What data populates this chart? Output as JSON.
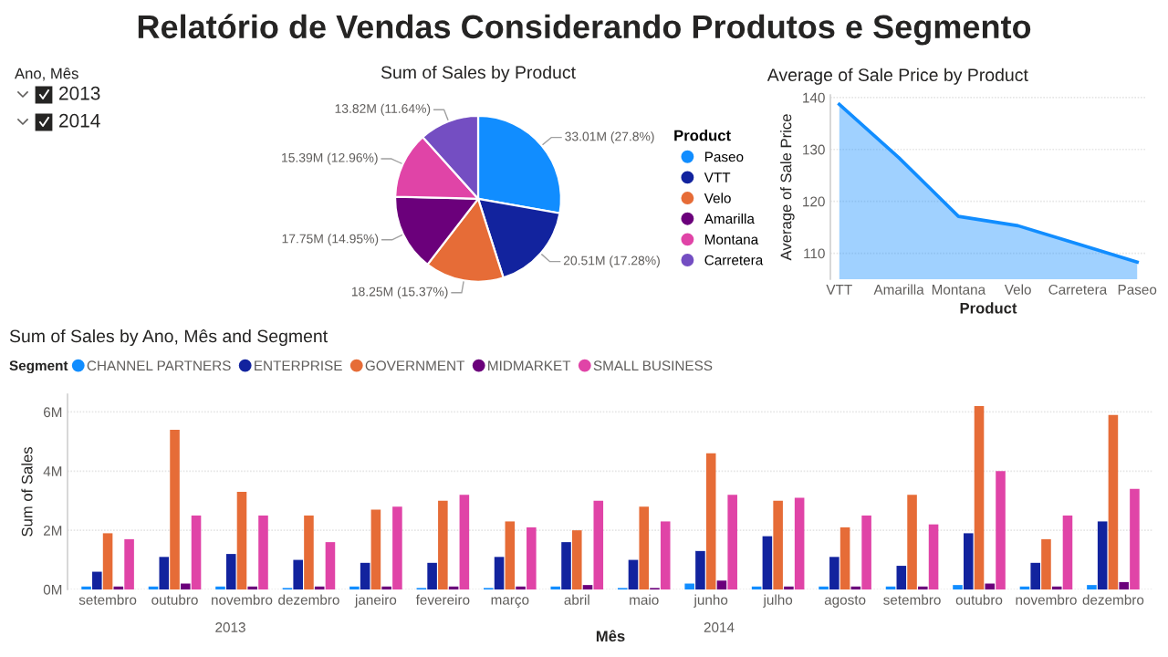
{
  "chart_data": [
    {
      "type": "other",
      "title": "Relatório de Vendas Considerando Produtos e Segmento",
      "annotations": [
        "Ano, Mês",
        "2013",
        "2014"
      ]
    },
    {
      "type": "pie",
      "title": "Sum of Sales by Product",
      "legend_title": "Product",
      "legend": "right",
      "categories": [
        "Paseo",
        "VTT",
        "Velo",
        "Amarilla",
        "Montana",
        "Carretera"
      ],
      "values": [
        27.8,
        17.28,
        15.37,
        14.95,
        12.96,
        11.64
      ],
      "colors": [
        "#118dff",
        "#12239e",
        "#e66c37",
        "#6b007b",
        "#e044a7",
        "#744ec2"
      ],
      "value_labels": [
        "33.01M (27.8%)",
        "20.51M (17.28%)",
        "18.25M (15.37%)",
        "17.75M (14.95%)",
        "15.39M (12.96%)",
        "13.82M (11.64%)"
      ]
    },
    {
      "type": "area",
      "title": "Average of Sale Price by Product",
      "xlabel": "Product",
      "ylabel": "Average of Sale Price",
      "categories": [
        "VTT",
        "Amarilla",
        "Montana",
        "Velo",
        "Carretera",
        "Paseo"
      ],
      "series": [
        {
          "color": "#118dff",
          "values": [
            138.7,
            128.4,
            117.1,
            115.3,
            111.8,
            108.3
          ]
        }
      ],
      "ylim": [
        105,
        140.5
      ],
      "yticks": [
        110,
        120,
        130,
        140
      ],
      "grid": "y"
    },
    {
      "type": "bar",
      "title": "Sum of Sales by Ano, Mês and Segment",
      "xlabel": "Mês",
      "ylabel": "Sum of Sales",
      "legend_title": "Segment",
      "legend": "top",
      "grid": "y",
      "ylim": [
        0,
        6.6
      ],
      "yticks": [
        {
          "value": 0,
          "label": "0M"
        },
        {
          "value": 2,
          "label": "2M"
        },
        {
          "value": 4,
          "label": "4M"
        },
        {
          "value": 6,
          "label": "6M"
        }
      ],
      "categories": [
        "setembro",
        "outubro",
        "novembro",
        "dezembro",
        "janeiro",
        "fevereiro",
        "março",
        "abril",
        "maio",
        "junho",
        "julho",
        "agosto",
        "setembro",
        "outubro",
        "novembro",
        "dezembro"
      ],
      "annotations": [
        "2013",
        "2014"
      ],
      "series": [
        {
          "name": "CHANNEL PARTNERS",
          "color": "#118dff",
          "values": [
            0.1,
            0.1,
            0.1,
            0.05,
            0.1,
            0.05,
            0.05,
            0.1,
            0.05,
            0.2,
            0.1,
            0.1,
            0.1,
            0.15,
            0.1,
            0.15
          ]
        },
        {
          "name": "ENTERPRISE",
          "color": "#12239e",
          "values": [
            0.6,
            1.1,
            1.2,
            1.0,
            0.9,
            0.9,
            1.1,
            1.6,
            1.0,
            1.3,
            1.8,
            1.1,
            0.8,
            1.9,
            0.9,
            2.3
          ]
        },
        {
          "name": "GOVERNMENT",
          "color": "#e66c37",
          "values": [
            1.9,
            5.4,
            3.3,
            2.5,
            2.7,
            3.0,
            2.3,
            2.0,
            2.8,
            4.6,
            3.0,
            2.1,
            3.2,
            6.2,
            1.7,
            5.9
          ]
        },
        {
          "name": "MIDMARKET",
          "color": "#6b007b",
          "values": [
            0.1,
            0.2,
            0.1,
            0.1,
            0.1,
            0.1,
            0.1,
            0.15,
            0.05,
            0.3,
            0.1,
            0.1,
            0.1,
            0.2,
            0.1,
            0.25
          ]
        },
        {
          "name": "SMALL BUSINESS",
          "color": "#e044a7",
          "values": [
            1.7,
            2.5,
            2.5,
            1.6,
            2.8,
            3.2,
            2.1,
            3.0,
            2.3,
            3.2,
            3.1,
            2.5,
            2.2,
            4.0,
            2.5,
            3.4
          ]
        }
      ]
    }
  ]
}
